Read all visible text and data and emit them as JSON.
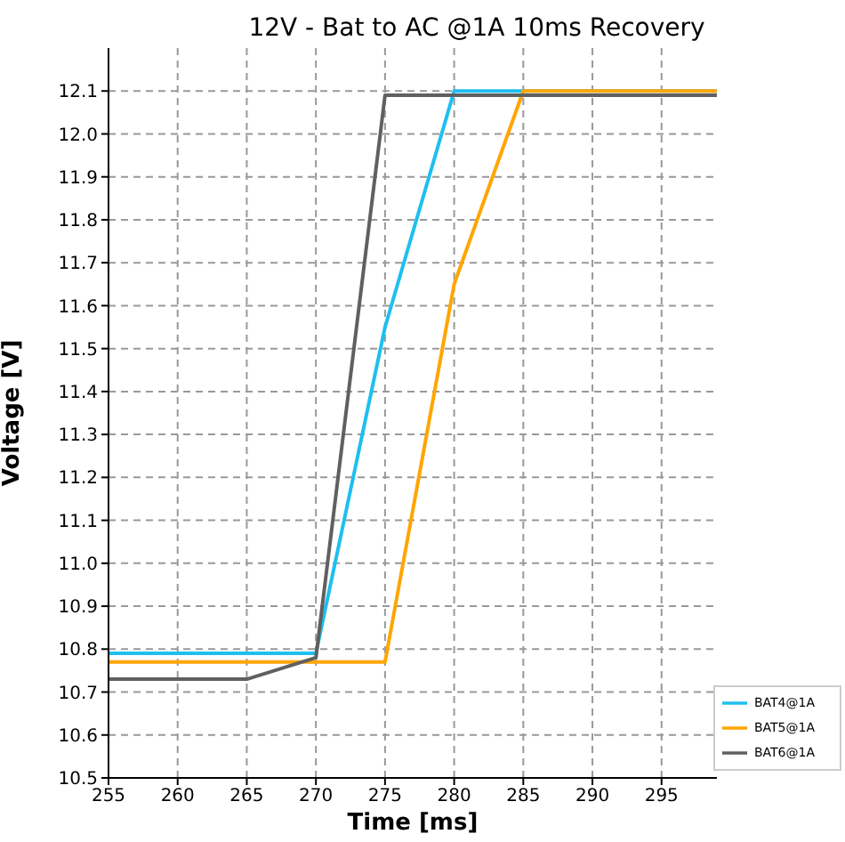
{
  "chart_data": {
    "type": "line",
    "title": "12V - Bat to AC @1A 10ms Recovery",
    "xlabel": "Time [ms]",
    "ylabel": "Voltage [V]",
    "x": [
      255,
      265,
      270,
      275,
      280,
      285,
      299
    ],
    "series": [
      {
        "name": "BAT4@1A",
        "color": "#1ebff0",
        "values": [
          10.79,
          10.79,
          10.79,
          11.55,
          12.1,
          12.1,
          12.1
        ]
      },
      {
        "name": "BAT5@1A",
        "color": "#ffa500",
        "values": [
          10.77,
          10.77,
          10.77,
          10.77,
          11.65,
          12.1,
          12.1
        ]
      },
      {
        "name": "BAT6@1A",
        "color": "#606060",
        "values": [
          10.73,
          10.73,
          10.78,
          12.09,
          12.09,
          12.09,
          12.09
        ]
      }
    ],
    "xlim": [
      255,
      299
    ],
    "xticks": [
      255,
      260,
      265,
      270,
      275,
      280,
      285,
      290,
      295
    ],
    "ylim": [
      10.5,
      12.2
    ],
    "yticks": [
      10.5,
      10.6,
      10.7,
      10.8,
      10.9,
      {
        "value": 11,
        "label": "11.0"
      },
      11.1,
      11.2,
      11.3,
      11.4,
      11.5,
      11.6,
      11.7,
      11.8,
      11.9,
      {
        "value": 12,
        "label": "12.0"
      },
      12.1
    ],
    "grid": true,
    "legend": "bottom right",
    "marker": "none",
    "line_style": "solid"
  }
}
